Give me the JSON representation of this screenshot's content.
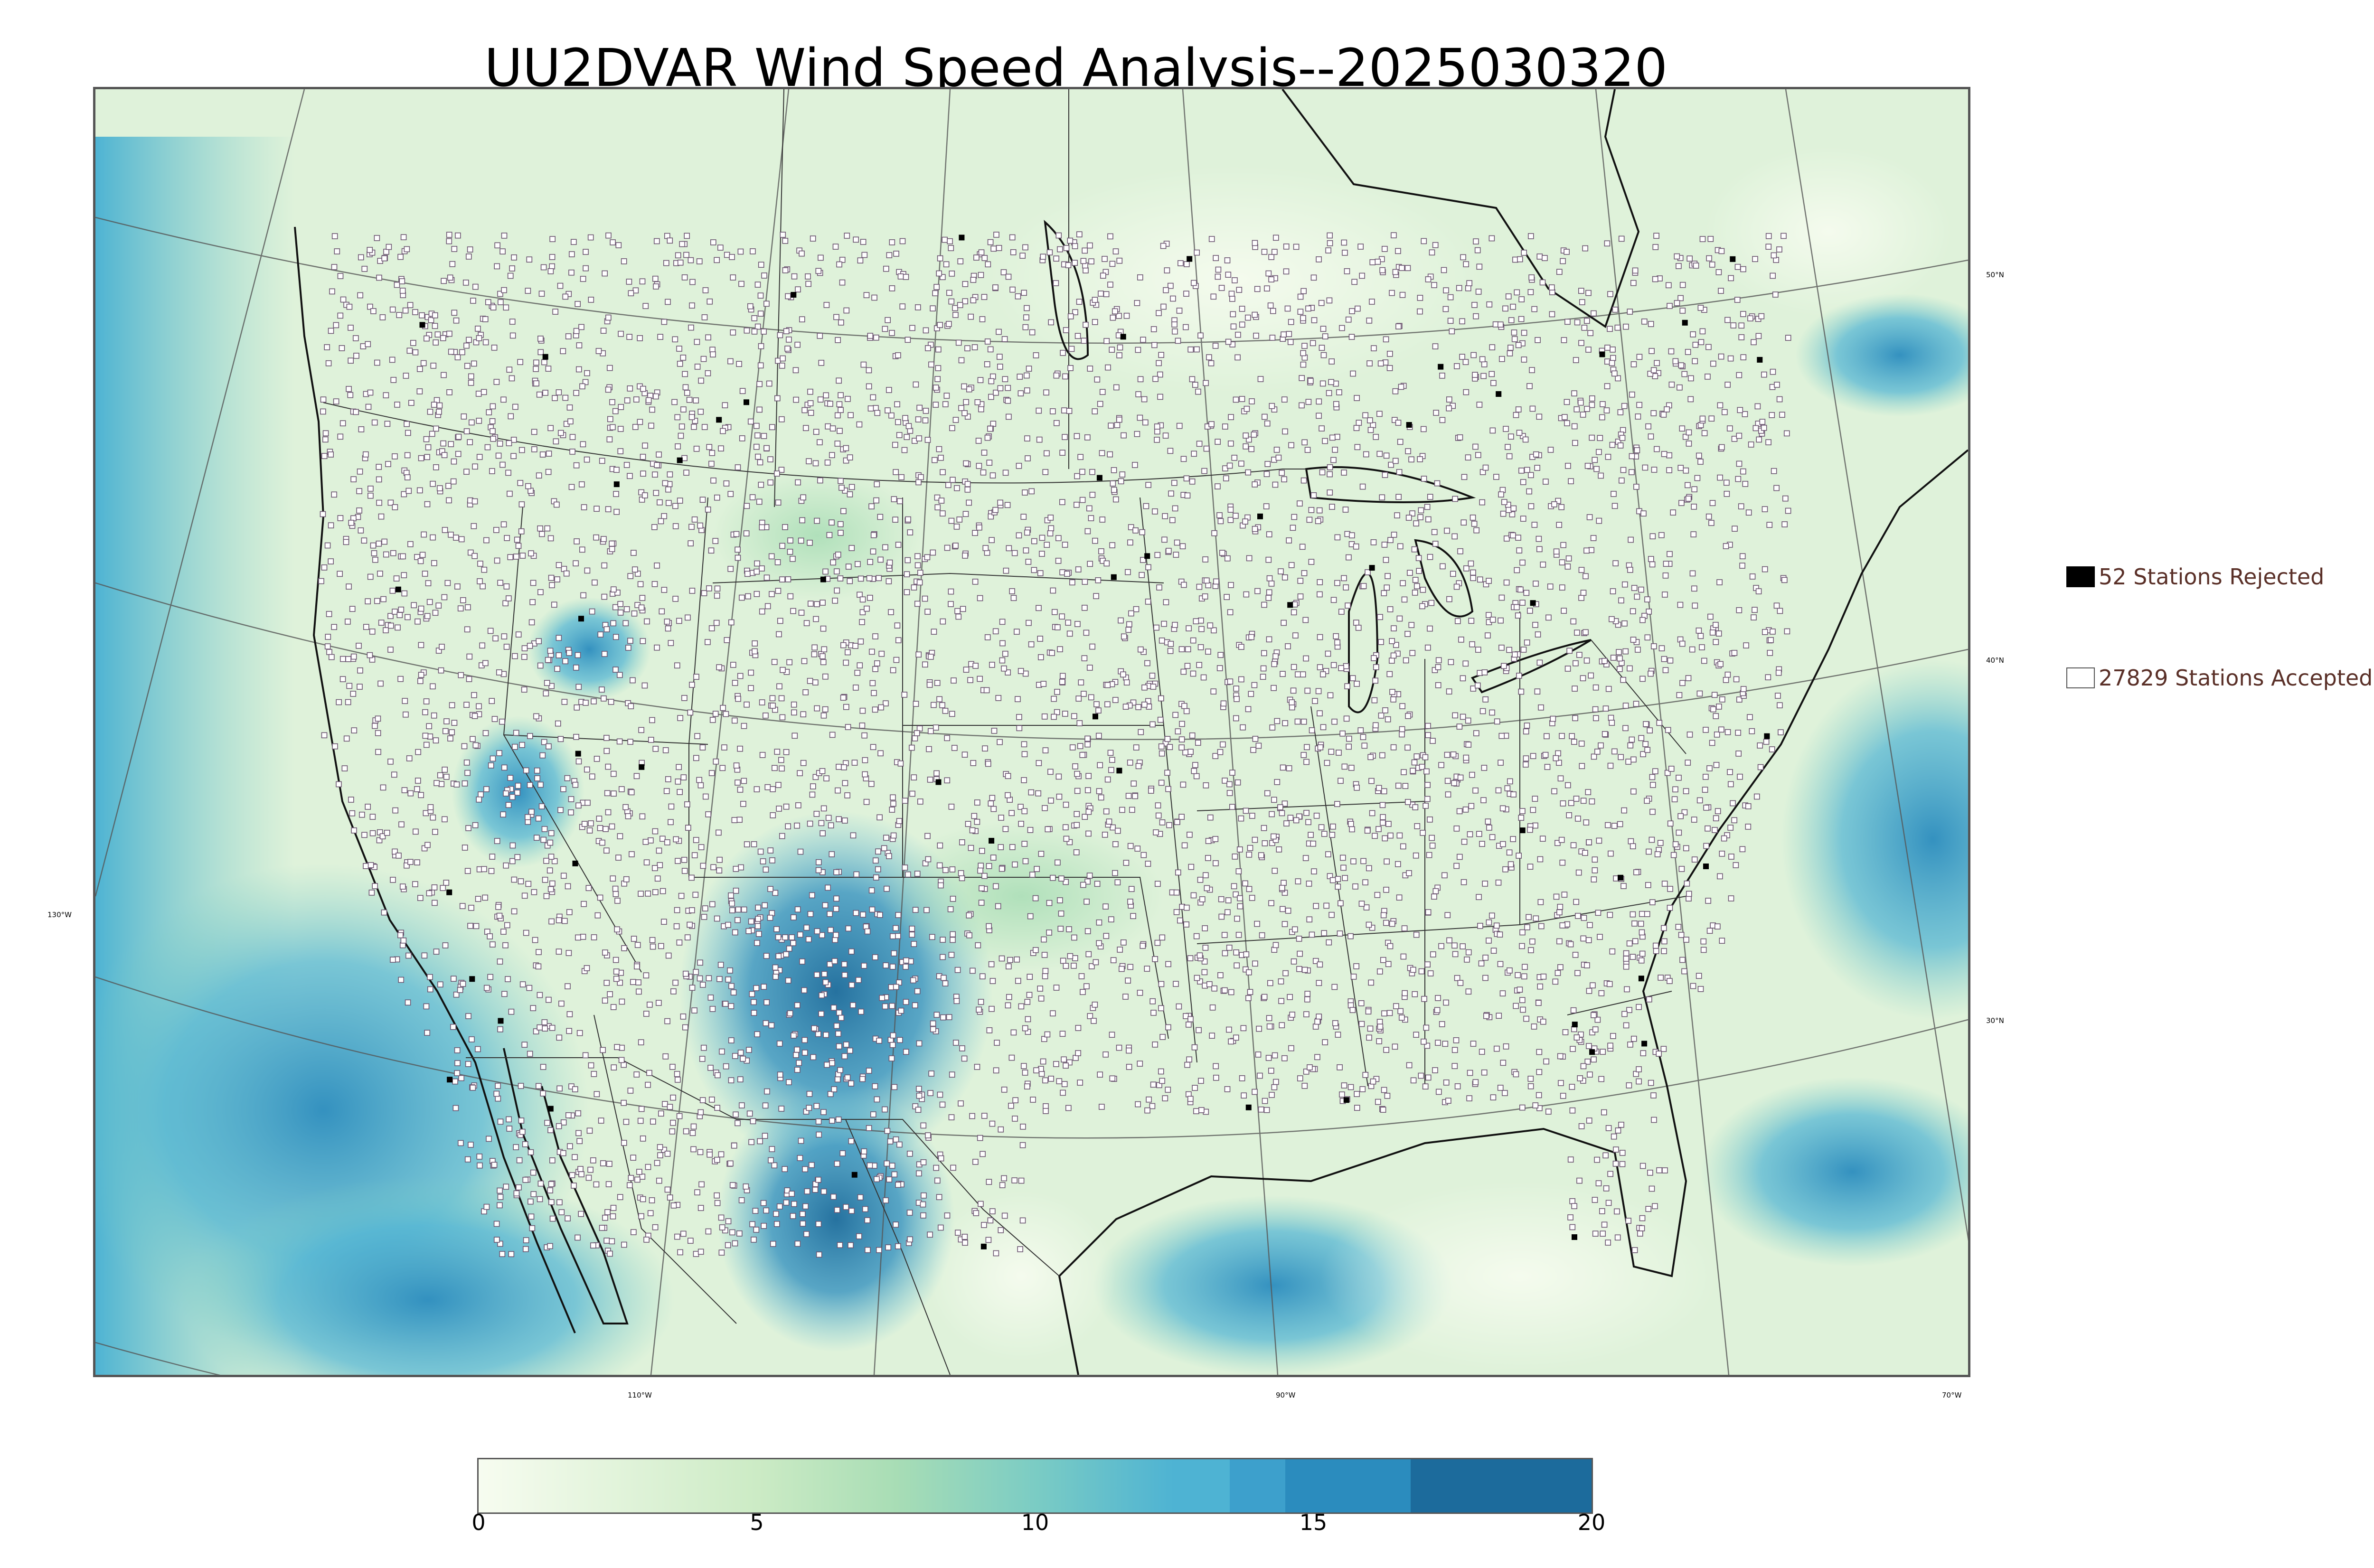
{
  "title": "UU2DVAR Wind Speed Analysis--2025030320",
  "map": {
    "latitude_labels": [
      "50°N",
      "40°N",
      "30°N"
    ],
    "longitude_labels": [
      "130°W",
      "110°W",
      "90°W",
      "70°W"
    ]
  },
  "legend": {
    "rejected": {
      "label": "52 Stations Rejected",
      "count": 52,
      "color": "#000000"
    },
    "accepted": {
      "label": "27829 Stations Accepted",
      "count": 27829,
      "color": "#ffffff"
    }
  },
  "colorbar": {
    "ticks": [
      "0",
      "5",
      "10",
      "15",
      "20"
    ],
    "range": [
      0,
      20
    ],
    "levels": [
      0,
      12.5,
      13.5,
      14.5,
      16.75,
      20
    ],
    "colors": {
      "gradient_start": "#f7fcf0",
      "gradient_mid1": "#ccebc5",
      "gradient_mid2": "#a8ddb5",
      "gradient_mid3": "#7bccc4",
      "gradient_end": "#4eb3d3",
      "band1": "#4eb3d3",
      "band2": "#3da0cc",
      "band3": "#2b8cbe",
      "band4": "#1c6b9c"
    }
  },
  "colors": {
    "land": "#dff2da",
    "ocean_high_wind": "#4eb3d3",
    "mountain_high_wind": "#2b8cbe",
    "boundaries": "#333333",
    "station_fill": "#ffffff",
    "station_edge": "#6b5570"
  }
}
